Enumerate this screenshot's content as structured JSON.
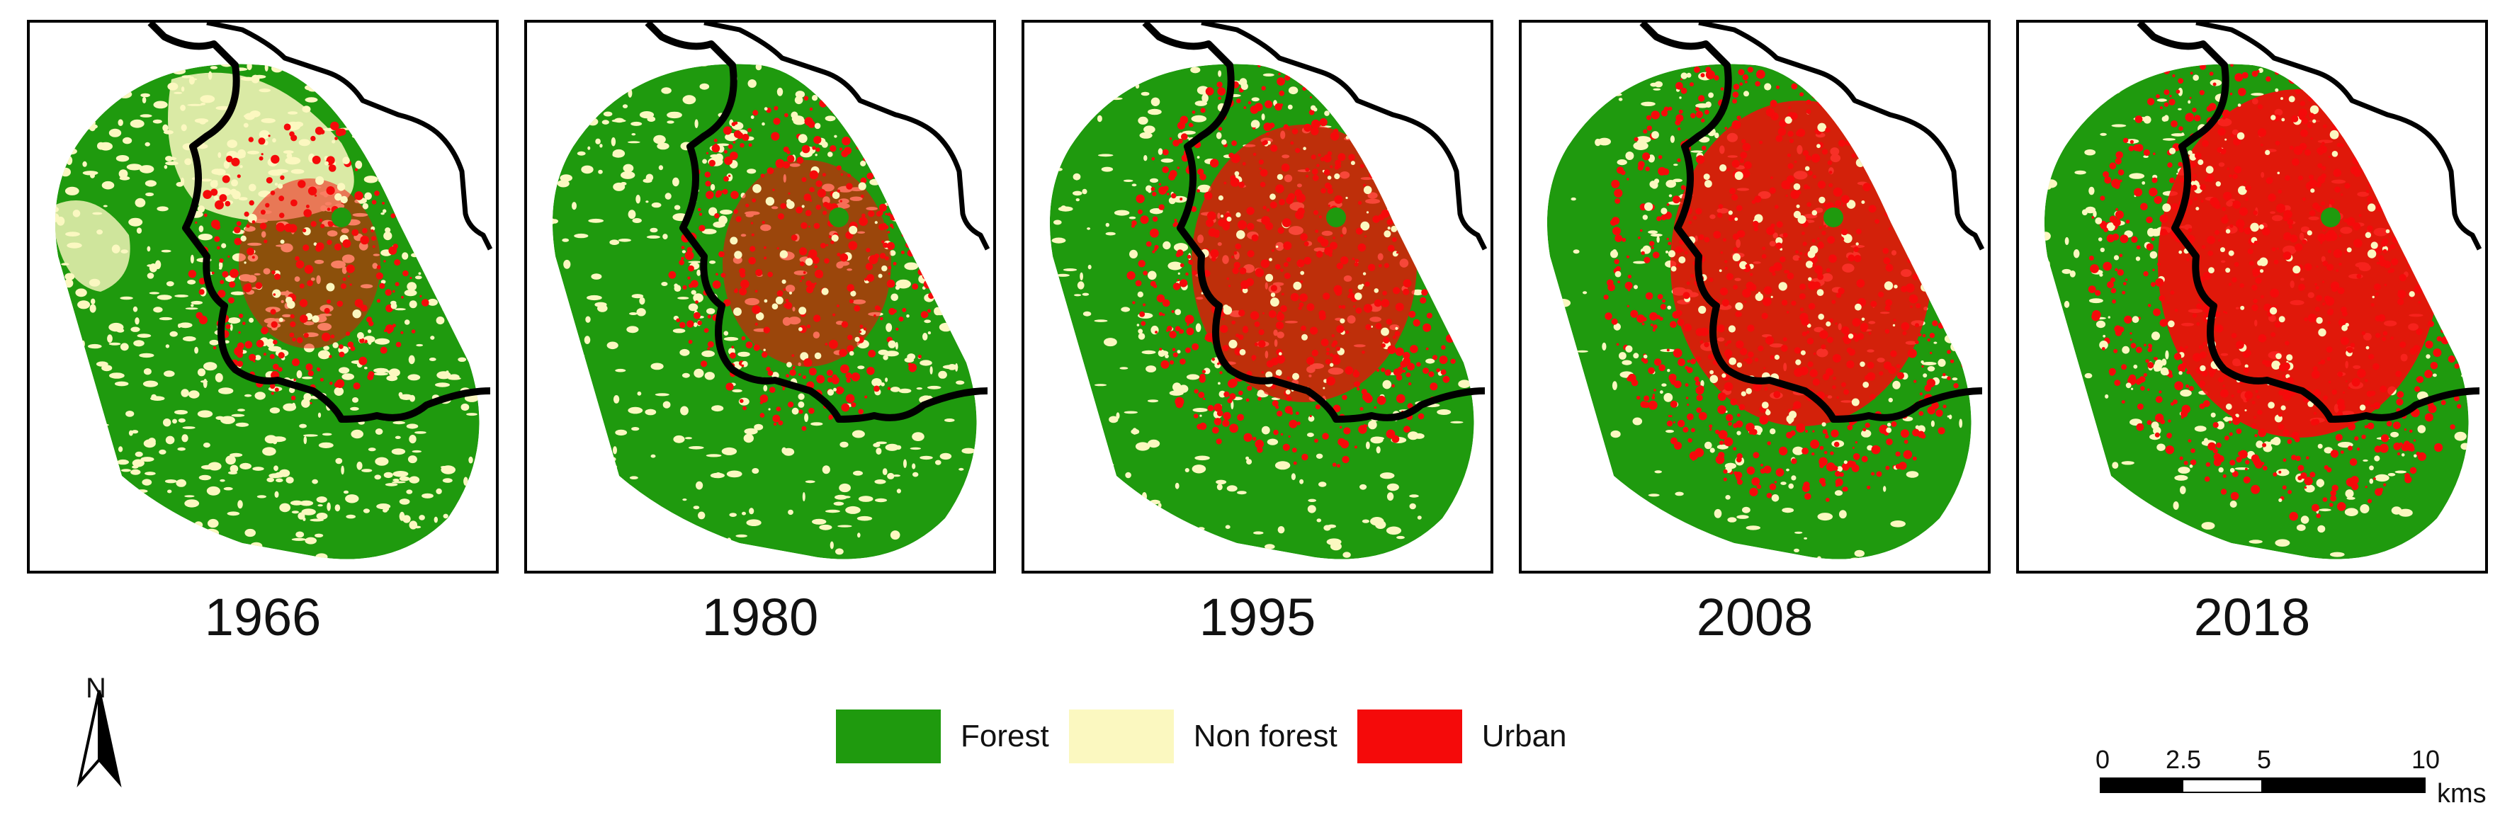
{
  "panels": [
    {
      "year": "1966",
      "forest_share": 0.58,
      "nonforest_share": 0.3,
      "urban_share": 0.12
    },
    {
      "year": "1980",
      "forest_share": 0.62,
      "nonforest_share": 0.2,
      "urban_share": 0.18
    },
    {
      "year": "1995",
      "forest_share": 0.55,
      "nonforest_share": 0.15,
      "urban_share": 0.3
    },
    {
      "year": "2008",
      "forest_share": 0.52,
      "nonforest_share": 0.1,
      "urban_share": 0.38
    },
    {
      "year": "2018",
      "forest_share": 0.48,
      "nonforest_share": 0.1,
      "urban_share": 0.42
    }
  ],
  "legend": [
    {
      "label": "Forest",
      "color": "#1f9a0e"
    },
    {
      "label": "Non forest",
      "color": "#fbf8c0"
    },
    {
      "label": "Urban",
      "color": "#f50a0a"
    }
  ],
  "north_arrow": {
    "label": "N"
  },
  "scale_bar": {
    "ticks": [
      "0",
      "2.5",
      "5",
      "10"
    ],
    "tick_values": [
      0,
      2.5,
      5,
      10
    ],
    "unit": "kms"
  }
}
